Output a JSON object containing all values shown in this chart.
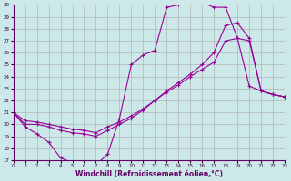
{
  "xlabel": "Windchill (Refroidissement éolien,°C)",
  "bg_color": "#cce8e8",
  "line_color": "#990099",
  "grid_color": "#aaaaaa",
  "xlim": [
    0,
    23
  ],
  "ylim": [
    17,
    30
  ],
  "curve1_x": [
    0,
    1,
    2,
    3,
    4,
    5,
    6,
    7,
    8,
    9,
    10,
    11,
    12,
    13,
    14,
    15,
    16,
    17,
    18,
    19,
    20,
    21,
    22,
    23
  ],
  "curve1_y": [
    21.0,
    19.8,
    19.2,
    18.5,
    17.2,
    16.8,
    16.7,
    16.6,
    17.5,
    20.5,
    25.0,
    25.8,
    26.2,
    29.8,
    30.0,
    30.2,
    30.2,
    29.8,
    29.8,
    27.2,
    23.2,
    22.8,
    22.5,
    22.3
  ],
  "curve2_x": [
    0,
    1,
    2,
    3,
    4,
    5,
    6,
    7,
    8,
    9,
    10,
    11,
    12,
    13,
    14,
    15,
    16,
    17,
    18,
    19,
    20,
    21,
    22,
    23
  ],
  "curve2_y": [
    21.0,
    20.0,
    20.0,
    19.8,
    19.5,
    19.3,
    19.2,
    19.0,
    19.5,
    20.0,
    20.5,
    21.2,
    22.0,
    22.8,
    23.5,
    24.2,
    25.0,
    26.0,
    28.3,
    28.5,
    27.2,
    22.8,
    22.5,
    22.3
  ],
  "curve3_x": [
    0,
    1,
    2,
    3,
    4,
    5,
    6,
    7,
    8,
    9,
    10,
    11,
    12,
    13,
    14,
    15,
    16,
    17,
    18,
    19,
    20,
    21,
    22,
    23
  ],
  "curve3_y": [
    21.0,
    20.3,
    20.2,
    20.0,
    19.8,
    19.6,
    19.5,
    19.3,
    19.8,
    20.2,
    20.7,
    21.3,
    22.0,
    22.7,
    23.3,
    24.0,
    24.6,
    25.2,
    27.0,
    27.2,
    27.0,
    22.8,
    22.5,
    22.3
  ],
  "xlabel_color": "#660066",
  "tick_color": "#330033",
  "spine_color": "#660066"
}
